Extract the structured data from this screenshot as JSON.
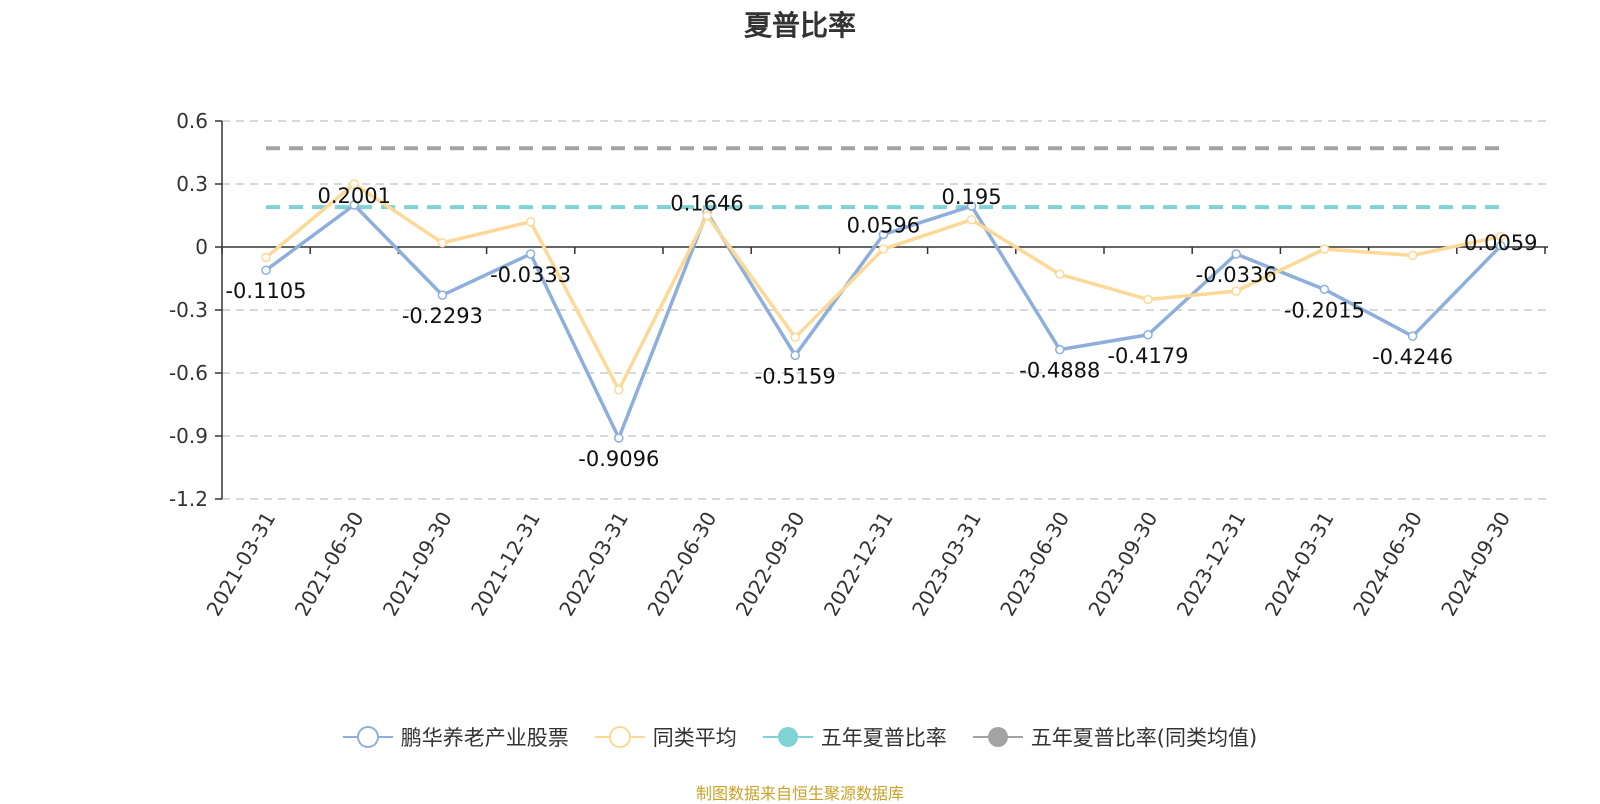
{
  "chart_data": {
    "type": "line",
    "title": "夏普比率",
    "categories": [
      "2021-03-31",
      "2021-06-30",
      "2021-09-30",
      "2021-12-31",
      "2022-03-31",
      "2022-06-30",
      "2022-09-30",
      "2022-12-31",
      "2023-03-31",
      "2023-06-30",
      "2023-09-30",
      "2023-12-31",
      "2024-03-31",
      "2024-06-30",
      "2024-09-30"
    ],
    "ylim": [
      -1.2,
      0.6
    ],
    "yticks": [
      "0.6",
      "0.3",
      "0",
      "-0.3",
      "-0.6",
      "-0.9",
      "-1.2"
    ],
    "grid": true,
    "legend_position": "bottom",
    "series": [
      {
        "name": "鹏华养老产业股票",
        "color": "#8eaedb",
        "values": [
          -0.1105,
          0.2001,
          -0.2293,
          -0.0333,
          -0.9096,
          0.1646,
          -0.5159,
          0.0596,
          0.195,
          -0.4888,
          -0.4179,
          -0.0336,
          -0.2015,
          -0.4246,
          0.0059
        ],
        "labels": [
          "-0.1105",
          "0.2001",
          "-0.2293",
          "-0.0333",
          "-0.9096",
          "0.1646",
          "-0.5159",
          "0.0596",
          "0.195",
          "-0.4888",
          "-0.4179",
          "-0.0336",
          "-0.2015",
          "-0.4246",
          "0.0059"
        ]
      },
      {
        "name": "同类平均",
        "color": "#fcd997",
        "values": [
          -0.05,
          0.3,
          0.02,
          0.12,
          -0.68,
          0.15,
          -0.43,
          -0.01,
          0.13,
          -0.13,
          -0.25,
          -0.21,
          -0.01,
          -0.04,
          0.05
        ]
      },
      {
        "name": "五年夏普比率",
        "color": "#7fd3d5",
        "values_constant": 0.19
      },
      {
        "name": "五年夏普比率(同类均值)",
        "color": "#a3a3a3",
        "values_constant": 0.47
      }
    ]
  },
  "source": "制图数据来自恒生聚源数据库"
}
